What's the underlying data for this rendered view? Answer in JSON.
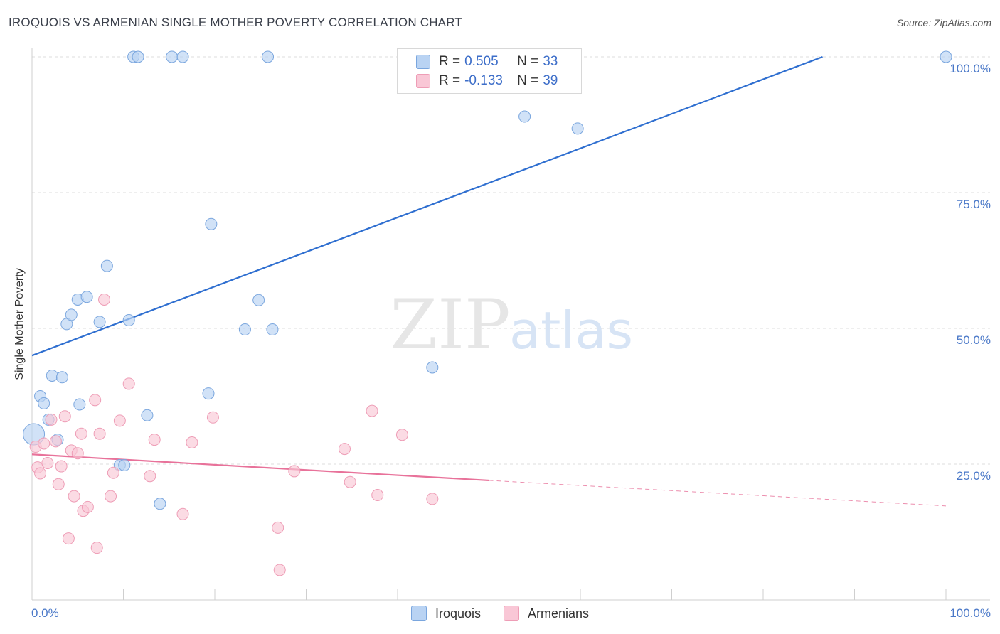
{
  "header": {
    "title": "IROQUOIS VS ARMENIAN SINGLE MOTHER POVERTY CORRELATION CHART",
    "source": "Source: ZipAtlas.com"
  },
  "watermark": {
    "zip": "ZIP",
    "atlas": "atlas"
  },
  "legend_top": {
    "rows": [
      {
        "r_label": "R =",
        "r_value": "0.505",
        "n_label": "N =",
        "n_value": "33"
      },
      {
        "r_label": "R =",
        "r_value": "-0.133",
        "n_label": "N =",
        "n_value": "39"
      }
    ]
  },
  "legend_bottom": {
    "items": [
      "Iroquois",
      "Armenians"
    ]
  },
  "colors": {
    "iroquois_fill": "#b9d3f3",
    "iroquois_stroke": "#7aa6de",
    "iroquois_line": "#2f6fd0",
    "armenian_fill": "#f9c7d6",
    "armenian_stroke": "#ee9db6",
    "armenian_line": "#e8729a",
    "axis_text": "#4a78c8",
    "grid": "#dcdcdc"
  },
  "chart_data": {
    "type": "scatter",
    "title": "IROQUOIS VS ARMENIAN SINGLE MOTHER POVERTY CORRELATION CHART",
    "xlabel": "",
    "ylabel": "Single Mother Poverty",
    "xlim": [
      0,
      100
    ],
    "ylim": [
      0,
      100
    ],
    "x_tick_labels": [
      "0.0%",
      "100.0%"
    ],
    "y_tick_labels": [
      "25.0%",
      "50.0%",
      "75.0%",
      "100.0%"
    ],
    "y_ticks": [
      25,
      50,
      75,
      100
    ],
    "grid": true,
    "legend_position": "top-center",
    "series": [
      {
        "name": "Iroquois",
        "r": 0.505,
        "n": 33,
        "points": [
          [
            0.2,
            30.5
          ],
          [
            0.9,
            37.5
          ],
          [
            1.3,
            36.2
          ],
          [
            1.8,
            33.2
          ],
          [
            2.2,
            41.3
          ],
          [
            2.8,
            29.5
          ],
          [
            3.3,
            41
          ],
          [
            3.8,
            50.8
          ],
          [
            4.3,
            52.5
          ],
          [
            5.0,
            55.3
          ],
          [
            5.2,
            36
          ],
          [
            6.0,
            55.8
          ],
          [
            7.4,
            51.2
          ],
          [
            8.2,
            61.5
          ],
          [
            9.6,
            24.8
          ],
          [
            10.1,
            24.8
          ],
          [
            10.6,
            51.5
          ],
          [
            11.1,
            100
          ],
          [
            11.6,
            100
          ],
          [
            12.6,
            34
          ],
          [
            14,
            17.7
          ],
          [
            15.3,
            100
          ],
          [
            16.5,
            100
          ],
          [
            19.3,
            38
          ],
          [
            19.6,
            69.2
          ],
          [
            23.3,
            49.8
          ],
          [
            24.8,
            55.2
          ],
          [
            25.8,
            100
          ],
          [
            26.3,
            49.8
          ],
          [
            43.8,
            42.8
          ],
          [
            53.9,
            89
          ],
          [
            59.7,
            86.8
          ],
          [
            100,
            100
          ]
        ],
        "trend": {
          "x": [
            0,
            86.5
          ],
          "y": [
            45,
            100
          ]
        }
      },
      {
        "name": "Armenians",
        "r": -0.133,
        "n": 39,
        "points": [
          [
            0.4,
            28.2
          ],
          [
            0.6,
            24.4
          ],
          [
            0.9,
            23.3
          ],
          [
            1.3,
            28.8
          ],
          [
            1.7,
            25.2
          ],
          [
            2.1,
            33.2
          ],
          [
            2.6,
            29.2
          ],
          [
            2.9,
            21.3
          ],
          [
            3.2,
            24.6
          ],
          [
            3.6,
            33.8
          ],
          [
            4.0,
            11.3
          ],
          [
            4.3,
            27.5
          ],
          [
            4.6,
            19.1
          ],
          [
            5.0,
            27
          ],
          [
            5.4,
            30.6
          ],
          [
            5.6,
            16.4
          ],
          [
            6.1,
            17.1
          ],
          [
            6.9,
            36.8
          ],
          [
            7.1,
            9.6
          ],
          [
            7.4,
            30.6
          ],
          [
            7.9,
            55.3
          ],
          [
            8.6,
            19.1
          ],
          [
            8.9,
            23.4
          ],
          [
            9.6,
            33
          ],
          [
            10.6,
            39.8
          ],
          [
            12.9,
            22.8
          ],
          [
            13.4,
            29.5
          ],
          [
            16.5,
            15.8
          ],
          [
            17.5,
            29
          ],
          [
            19.8,
            33.6
          ],
          [
            26.9,
            13.3
          ],
          [
            27.1,
            5.5
          ],
          [
            28.7,
            23.7
          ],
          [
            34.2,
            27.8
          ],
          [
            34.8,
            21.7
          ],
          [
            37.2,
            34.8
          ],
          [
            37.8,
            19.3
          ],
          [
            40.5,
            30.4
          ],
          [
            43.8,
            18.6
          ]
        ],
        "trend": {
          "x": [
            0,
            50
          ],
          "y": [
            26.8,
            22
          ]
        },
        "trend_extension": {
          "x": [
            50,
            100
          ],
          "y": [
            22,
            17.3
          ]
        }
      }
    ]
  }
}
